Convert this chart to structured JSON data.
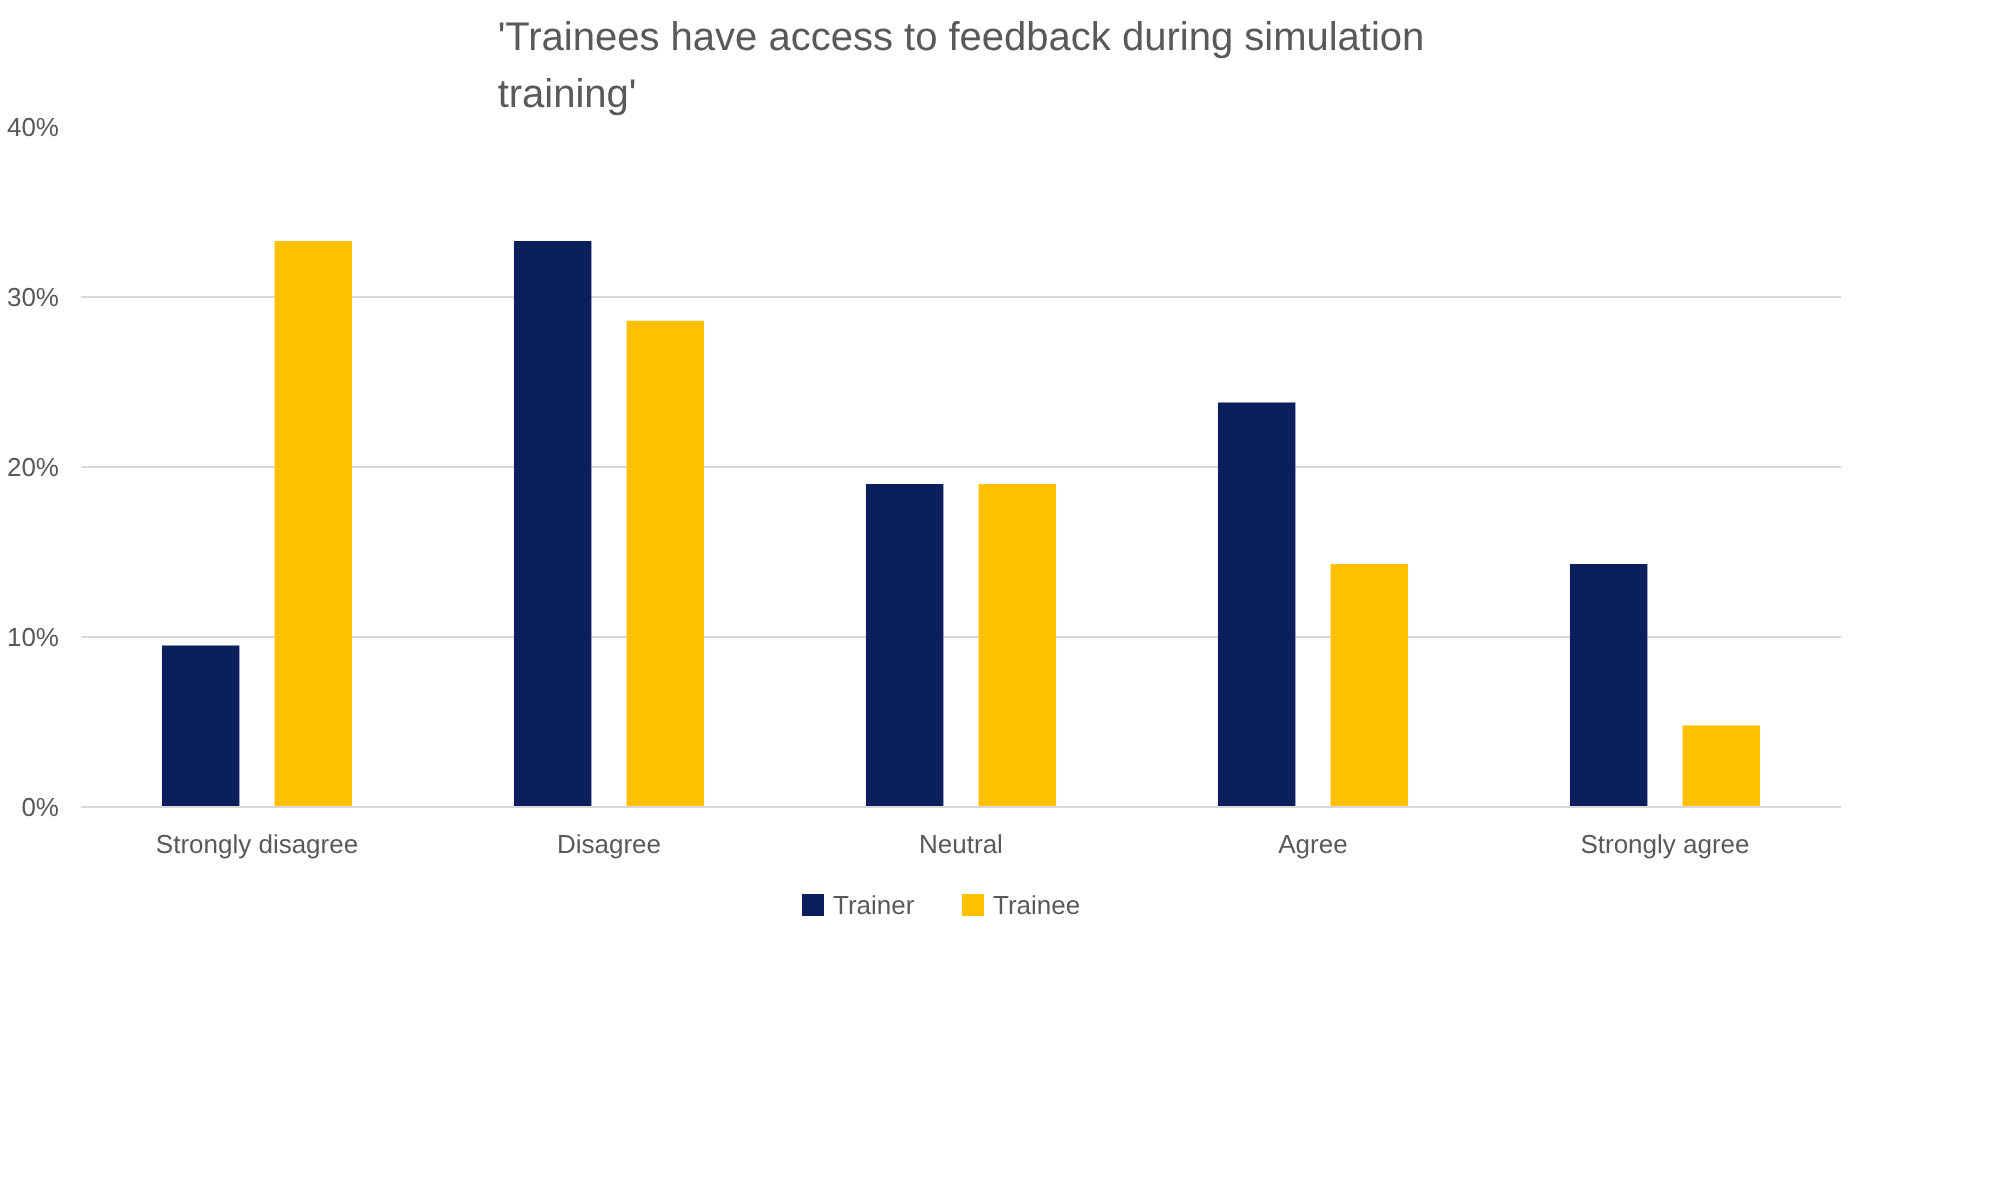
{
  "chart_data": {
    "type": "bar",
    "title": "'Trainees have access to feedback during simulation training'",
    "categories": [
      "Strongly disagree",
      "Disagree",
      "Neutral",
      "Agree",
      "Strongly agree"
    ],
    "series": [
      {
        "name": "Trainer",
        "color": "#0b1f5c",
        "values": [
          9.5,
          33.3,
          19.0,
          23.8,
          14.3
        ]
      },
      {
        "name": "Trainee",
        "color": "#ffc000",
        "values": [
          33.3,
          28.6,
          19.0,
          14.3,
          4.8
        ]
      }
    ],
    "ylim": [
      0,
      40
    ],
    "yticks": [
      {
        "value": 0,
        "label": "0%"
      },
      {
        "value": 10,
        "label": "10%"
      },
      {
        "value": 20,
        "label": "20%"
      },
      {
        "value": 30,
        "label": "30%"
      },
      {
        "value": 40,
        "label": "40%"
      }
    ],
    "grid": "y",
    "legend": "bottom"
  }
}
